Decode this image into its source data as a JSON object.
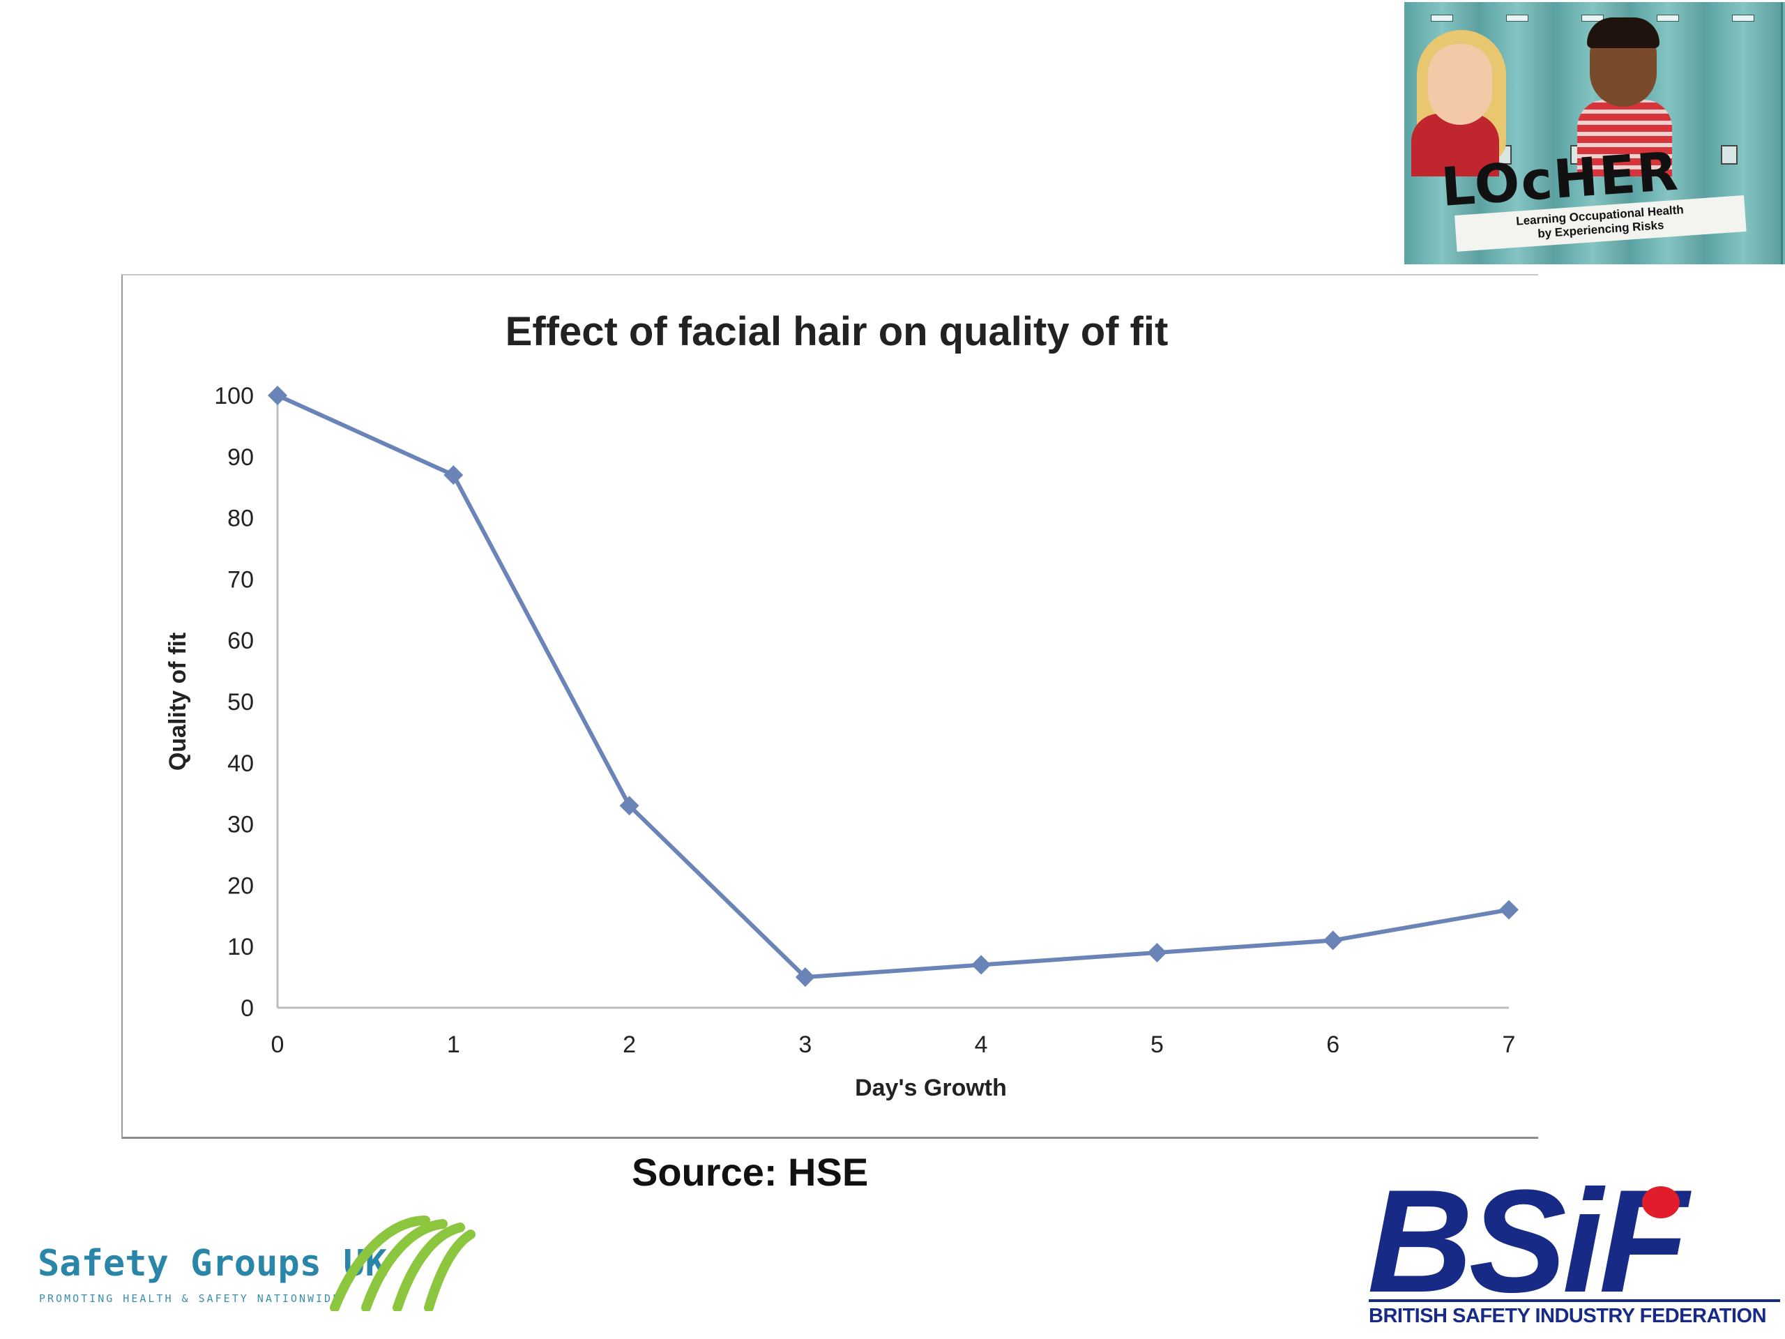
{
  "chart_data": {
    "type": "line",
    "title": "Effect of facial hair on quality of fit",
    "xlabel": "Day's Growth",
    "ylabel": "Quality of fit",
    "x": [
      0,
      1,
      2,
      3,
      4,
      5,
      6,
      7
    ],
    "y_ticks": [
      0,
      10,
      20,
      30,
      40,
      50,
      60,
      70,
      80,
      90,
      100
    ],
    "series": [
      {
        "values": [
          100,
          87,
          33,
          5,
          7,
          9,
          11,
          16
        ]
      }
    ],
    "xlim": [
      0,
      7
    ],
    "ylim": [
      0,
      100
    ],
    "grid": false,
    "legend": "none",
    "line_color": "#6b84b8",
    "marker": "diamond"
  },
  "source": "Source: HSE",
  "logos": {
    "locher": {
      "brand": "LOcHER",
      "tagline_line1": "Learning Occupational Health",
      "tagline_line2": "by Experiencing Risks"
    },
    "safety_groups_uk": {
      "name": "Safety Groups UK",
      "tagline": "PROMOTING HEALTH & SAFETY NATIONWIDE"
    },
    "bsif": {
      "mark": "BSiF",
      "full_name": "BRITISH SAFETY INDUSTRY FEDERATION"
    }
  }
}
